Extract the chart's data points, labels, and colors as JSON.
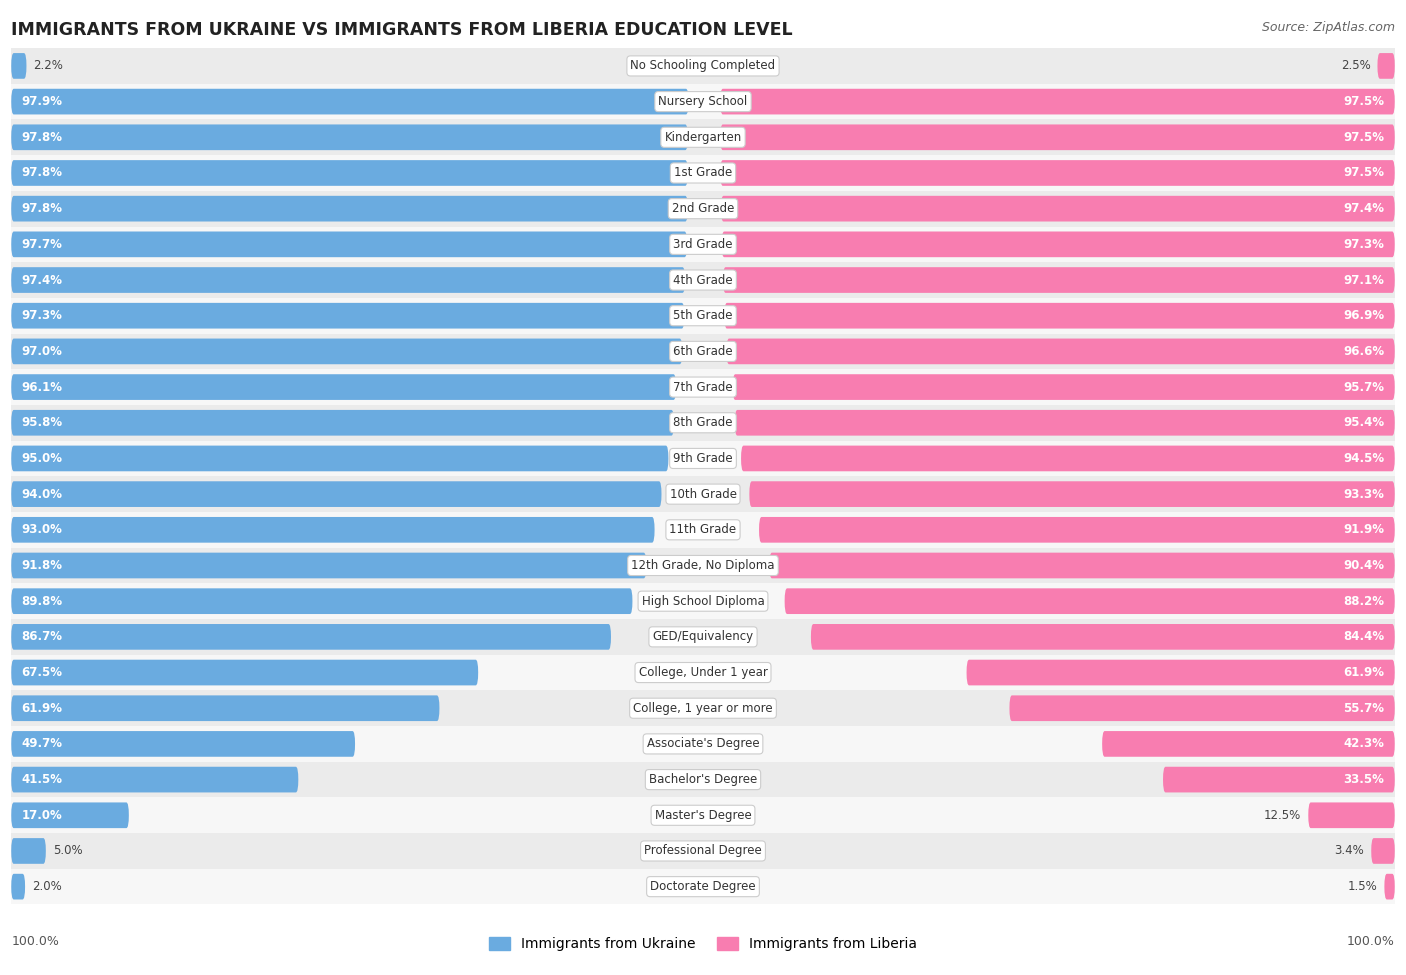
{
  "title": "IMMIGRANTS FROM UKRAINE VS IMMIGRANTS FROM LIBERIA EDUCATION LEVEL",
  "source": "Source: ZipAtlas.com",
  "categories": [
    "No Schooling Completed",
    "Nursery School",
    "Kindergarten",
    "1st Grade",
    "2nd Grade",
    "3rd Grade",
    "4th Grade",
    "5th Grade",
    "6th Grade",
    "7th Grade",
    "8th Grade",
    "9th Grade",
    "10th Grade",
    "11th Grade",
    "12th Grade, No Diploma",
    "High School Diploma",
    "GED/Equivalency",
    "College, Under 1 year",
    "College, 1 year or more",
    "Associate's Degree",
    "Bachelor's Degree",
    "Master's Degree",
    "Professional Degree",
    "Doctorate Degree"
  ],
  "ukraine_values": [
    2.2,
    97.9,
    97.8,
    97.8,
    97.8,
    97.7,
    97.4,
    97.3,
    97.0,
    96.1,
    95.8,
    95.0,
    94.0,
    93.0,
    91.8,
    89.8,
    86.7,
    67.5,
    61.9,
    49.7,
    41.5,
    17.0,
    5.0,
    2.0
  ],
  "liberia_values": [
    2.5,
    97.5,
    97.5,
    97.5,
    97.4,
    97.3,
    97.1,
    96.9,
    96.6,
    95.7,
    95.4,
    94.5,
    93.3,
    91.9,
    90.4,
    88.2,
    84.4,
    61.9,
    55.7,
    42.3,
    33.5,
    12.5,
    3.4,
    1.5
  ],
  "ukraine_color": "#6aabe0",
  "liberia_color": "#f87db0",
  "row_bg_color_odd": "#ebebeb",
  "row_bg_color_even": "#f7f7f7",
  "legend_ukraine": "Immigrants from Ukraine",
  "legend_liberia": "Immigrants from Liberia"
}
